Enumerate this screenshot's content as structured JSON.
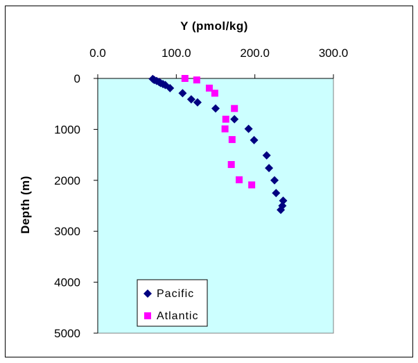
{
  "chart_data": {
    "type": "scatter",
    "xlabel": "Y (pmol/kg)",
    "ylabel": "Depth (m)",
    "xlim": [
      0,
      300
    ],
    "ylim": [
      0,
      5000
    ],
    "x_axis_position": "top",
    "y_inverted": true,
    "x_ticks": [
      "0.0",
      "100.0",
      "200.0",
      "300.0"
    ],
    "y_ticks": [
      "0",
      "1000",
      "2000",
      "3000",
      "4000",
      "5000"
    ],
    "grid": false,
    "legend_position": "bottom-left",
    "plot_background": "#ccffff",
    "series": [
      {
        "name": "Pacific",
        "marker": "diamond",
        "color": "#000080",
        "points": [
          [
            70,
            10
          ],
          [
            72,
            30
          ],
          [
            75,
            50
          ],
          [
            78,
            70
          ],
          [
            80,
            90
          ],
          [
            83,
            110
          ],
          [
            86,
            130
          ],
          [
            92,
            190
          ],
          [
            108,
            290
          ],
          [
            119,
            410
          ],
          [
            127,
            470
          ],
          [
            150,
            590
          ],
          [
            174,
            800
          ],
          [
            192,
            990
          ],
          [
            199,
            1210
          ],
          [
            215,
            1510
          ],
          [
            218,
            1760
          ],
          [
            225,
            2000
          ],
          [
            227,
            2250
          ],
          [
            236,
            2400
          ],
          [
            235,
            2500
          ],
          [
            233,
            2580
          ]
        ]
      },
      {
        "name": "Atlantic",
        "marker": "square",
        "color": "#ff00ff",
        "points": [
          [
            111,
            0
          ],
          [
            126,
            30
          ],
          [
            142,
            190
          ],
          [
            149,
            290
          ],
          [
            174,
            590
          ],
          [
            163,
            800
          ],
          [
            162,
            990
          ],
          [
            171,
            1200
          ],
          [
            170,
            1690
          ],
          [
            180,
            1990
          ],
          [
            196,
            2090
          ]
        ]
      }
    ]
  }
}
